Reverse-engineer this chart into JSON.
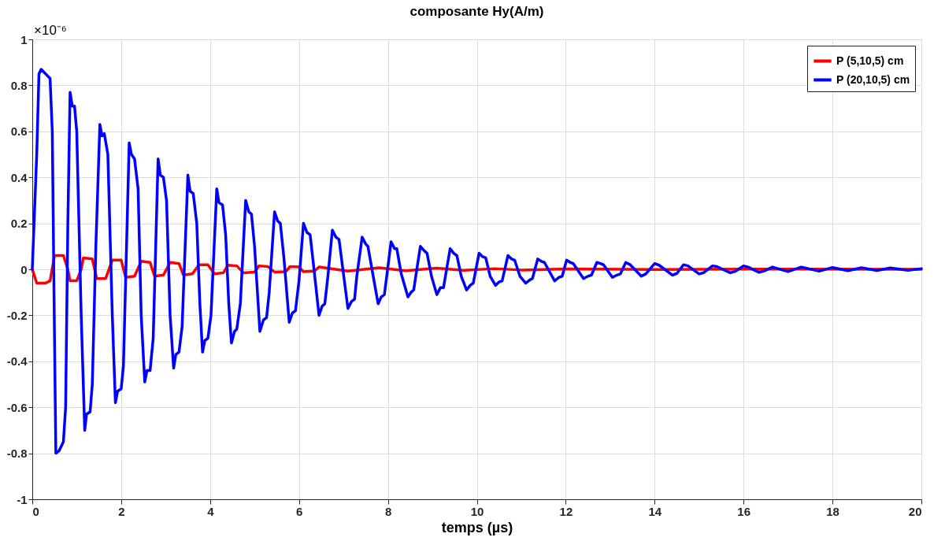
{
  "chart_data": {
    "type": "line",
    "title": "composante Hy(A/m)",
    "xlabel": "temps (µs)",
    "annotations": [
      "×10⁻⁶"
    ],
    "xlim": [
      0,
      20
    ],
    "xticks": [
      0,
      2,
      4,
      6,
      8,
      10,
      12,
      14,
      16,
      18,
      20
    ],
    "ylim": [
      -1,
      1
    ],
    "yticks": [
      -1,
      -0.8,
      -0.6,
      -0.4,
      -0.2,
      0,
      0.2,
      0.4,
      0.6,
      0.8,
      1
    ],
    "grid": true,
    "legend": "top right",
    "line_style": "solid",
    "series": [
      {
        "name": "P (5,10,5) cm",
        "color": "#ff0000",
        "x": [
          0,
          0.1,
          0.3,
          0.4,
          0.5,
          0.7,
          0.8,
          0.85,
          1.0,
          1.1,
          1.15,
          1.35,
          1.45,
          1.65,
          1.8,
          2.0,
          2.1,
          2.3,
          2.45,
          2.65,
          2.75,
          2.95,
          3.1,
          3.3,
          3.4,
          3.6,
          3.75,
          3.95,
          4.1,
          4.3,
          4.4,
          4.6,
          4.75,
          5.0,
          5.1,
          5.3,
          5.45,
          5.7,
          5.8,
          6.0,
          6.1,
          6.35,
          6.45,
          7.1,
          7.8,
          8.4,
          9.1,
          9.7,
          10.4,
          11,
          12,
          14,
          16,
          20
        ],
        "values": [
          0,
          -0.06,
          -0.06,
          -0.05,
          0.06,
          0.06,
          0.0,
          -0.05,
          -0.05,
          0,
          0.05,
          0.045,
          -0.04,
          -0.04,
          0.04,
          0.04,
          -0.035,
          -0.03,
          0.035,
          0.03,
          -0.03,
          -0.025,
          0.03,
          0.025,
          -0.025,
          -0.02,
          0.02,
          0.02,
          -0.02,
          -0.015,
          0.018,
          0.015,
          -0.015,
          -0.012,
          0.015,
          0.012,
          -0.012,
          -0.01,
          0.012,
          0.01,
          -0.01,
          -0.008,
          0.01,
          -0.008,
          0.007,
          -0.006,
          0.005,
          -0.004,
          0.003,
          -0.003,
          0.002,
          -0.001,
          0.001,
          0
        ]
      },
      {
        "name": "P (20,10,5) cm",
        "color": "#0000ff",
        "x": [
          0,
          0.1,
          0.15,
          0.2,
          0.4,
          0.45,
          0.5,
          0.53,
          0.6,
          0.7,
          0.75,
          0.8,
          0.85,
          0.9,
          0.95,
          1.0,
          1.1,
          1.18,
          1.22,
          1.3,
          1.35,
          1.43,
          1.52,
          1.57,
          1.62,
          1.7,
          1.8,
          1.87,
          1.92,
          2.0,
          2.05,
          2.12,
          2.18,
          2.23,
          2.3,
          2.38,
          2.45,
          2.53,
          2.58,
          2.65,
          2.72,
          2.83,
          2.88,
          2.95,
          3.02,
          3.1,
          3.18,
          3.23,
          3.3,
          3.37,
          3.5,
          3.55,
          3.62,
          3.7,
          3.77,
          3.83,
          3.88,
          3.95,
          4.02,
          4.15,
          4.2,
          4.28,
          4.35,
          4.42,
          4.48,
          4.55,
          4.6,
          4.68,
          4.8,
          4.87,
          4.93,
          5.0,
          5.12,
          5.2,
          5.27,
          5.33,
          5.45,
          5.52,
          5.58,
          5.66,
          5.78,
          5.85,
          5.92,
          6.0,
          6.1,
          6.18,
          6.25,
          6.32,
          6.45,
          6.52,
          6.58,
          6.65,
          6.75,
          6.83,
          6.9,
          6.98,
          7.1,
          7.18,
          7.25,
          7.3,
          7.42,
          7.5,
          7.55,
          7.65,
          7.78,
          7.85,
          7.92,
          7.98,
          8.07,
          8.15,
          8.2,
          8.3,
          8.45,
          8.52,
          8.58,
          8.65,
          8.73,
          8.82,
          8.88,
          8.98,
          9.1,
          9.18,
          9.25,
          9.32,
          9.4,
          9.48,
          9.55,
          9.65,
          9.77,
          9.85,
          9.92,
          10.05,
          10.13,
          10.2,
          10.3,
          10.42,
          10.5,
          10.57,
          10.7,
          10.78,
          10.85,
          10.97,
          11.1,
          11.2,
          11.25,
          11.37,
          11.45,
          11.52,
          11.75,
          11.85,
          11.92,
          12.02,
          12.1,
          12.17,
          12.4,
          12.5,
          12.58,
          12.7,
          12.78,
          12.85,
          13.05,
          13.15,
          13.23,
          13.35,
          13.45,
          13.7,
          13.8,
          14.0,
          14.1,
          14.4,
          14.5,
          14.65,
          14.75,
          15.0,
          15.1,
          15.3,
          15.4,
          15.7,
          15.8,
          16.0,
          16.1,
          16.35,
          16.45,
          16.65,
          17.0,
          17.3,
          17.7,
          18.0,
          18.35,
          18.65,
          19.0,
          19.3,
          19.7,
          20
        ],
        "values": [
          0,
          0.5,
          0.85,
          0.87,
          0.83,
          0.6,
          -0.3,
          -0.8,
          -0.79,
          -0.75,
          -0.6,
          0.2,
          0.77,
          0.71,
          0.71,
          0.6,
          -0.2,
          -0.7,
          -0.63,
          -0.62,
          -0.5,
          0.1,
          0.63,
          0.58,
          0.59,
          0.5,
          -0.2,
          -0.58,
          -0.53,
          -0.52,
          -0.42,
          0.1,
          0.55,
          0.5,
          0.48,
          0.35,
          -0.2,
          -0.49,
          -0.44,
          -0.44,
          -0.3,
          0.48,
          0.41,
          0.4,
          0.3,
          -0.2,
          -0.43,
          -0.37,
          -0.36,
          -0.25,
          0.41,
          0.34,
          0.33,
          0.2,
          -0.15,
          -0.36,
          -0.31,
          -0.3,
          -0.2,
          0.35,
          0.29,
          0.28,
          0.15,
          -0.15,
          -0.32,
          -0.27,
          -0.26,
          -0.15,
          0.3,
          0.25,
          0.24,
          0.1,
          -0.27,
          -0.22,
          -0.21,
          -0.1,
          0.25,
          0.21,
          0.2,
          0.05,
          -0.23,
          -0.19,
          -0.18,
          -0.05,
          0.2,
          0.16,
          0.15,
          0.03,
          -0.2,
          -0.16,
          -0.15,
          -0.03,
          0.17,
          0.14,
          0.13,
          0.01,
          -0.17,
          -0.14,
          -0.13,
          -0.03,
          0.14,
          0.11,
          0.1,
          -0.01,
          -0.15,
          -0.12,
          -0.11,
          -0.02,
          0.12,
          0.09,
          0.09,
          -0.02,
          -0.12,
          -0.1,
          -0.09,
          0,
          0.1,
          0.08,
          0.07,
          -0.03,
          -0.11,
          -0.08,
          -0.08,
          0,
          0.09,
          0.07,
          0.06,
          -0.03,
          -0.09,
          -0.07,
          -0.06,
          0.07,
          0.055,
          0.05,
          -0.03,
          -0.07,
          -0.055,
          -0.05,
          0.06,
          0.045,
          0.04,
          -0.03,
          -0.06,
          -0.045,
          -0.04,
          0.045,
          0.035,
          0.03,
          -0.05,
          -0.035,
          -0.03,
          0.04,
          0.03,
          0.025,
          -0.04,
          -0.03,
          -0.025,
          0.03,
          0.025,
          0.02,
          -0.035,
          -0.025,
          -0.02,
          0.03,
          0.02,
          -0.03,
          -0.02,
          0.025,
          0.018,
          -0.025,
          -0.018,
          0.02,
          0.015,
          -0.02,
          -0.015,
          0.015,
          0.012,
          -0.015,
          -0.01,
          0.015,
          0.01,
          -0.013,
          -0.008,
          0.01,
          -0.01,
          0.01,
          -0.008,
          0.008,
          -0.006,
          0.007,
          -0.005,
          0.006,
          -0.004,
          0.003
        ]
      }
    ]
  }
}
